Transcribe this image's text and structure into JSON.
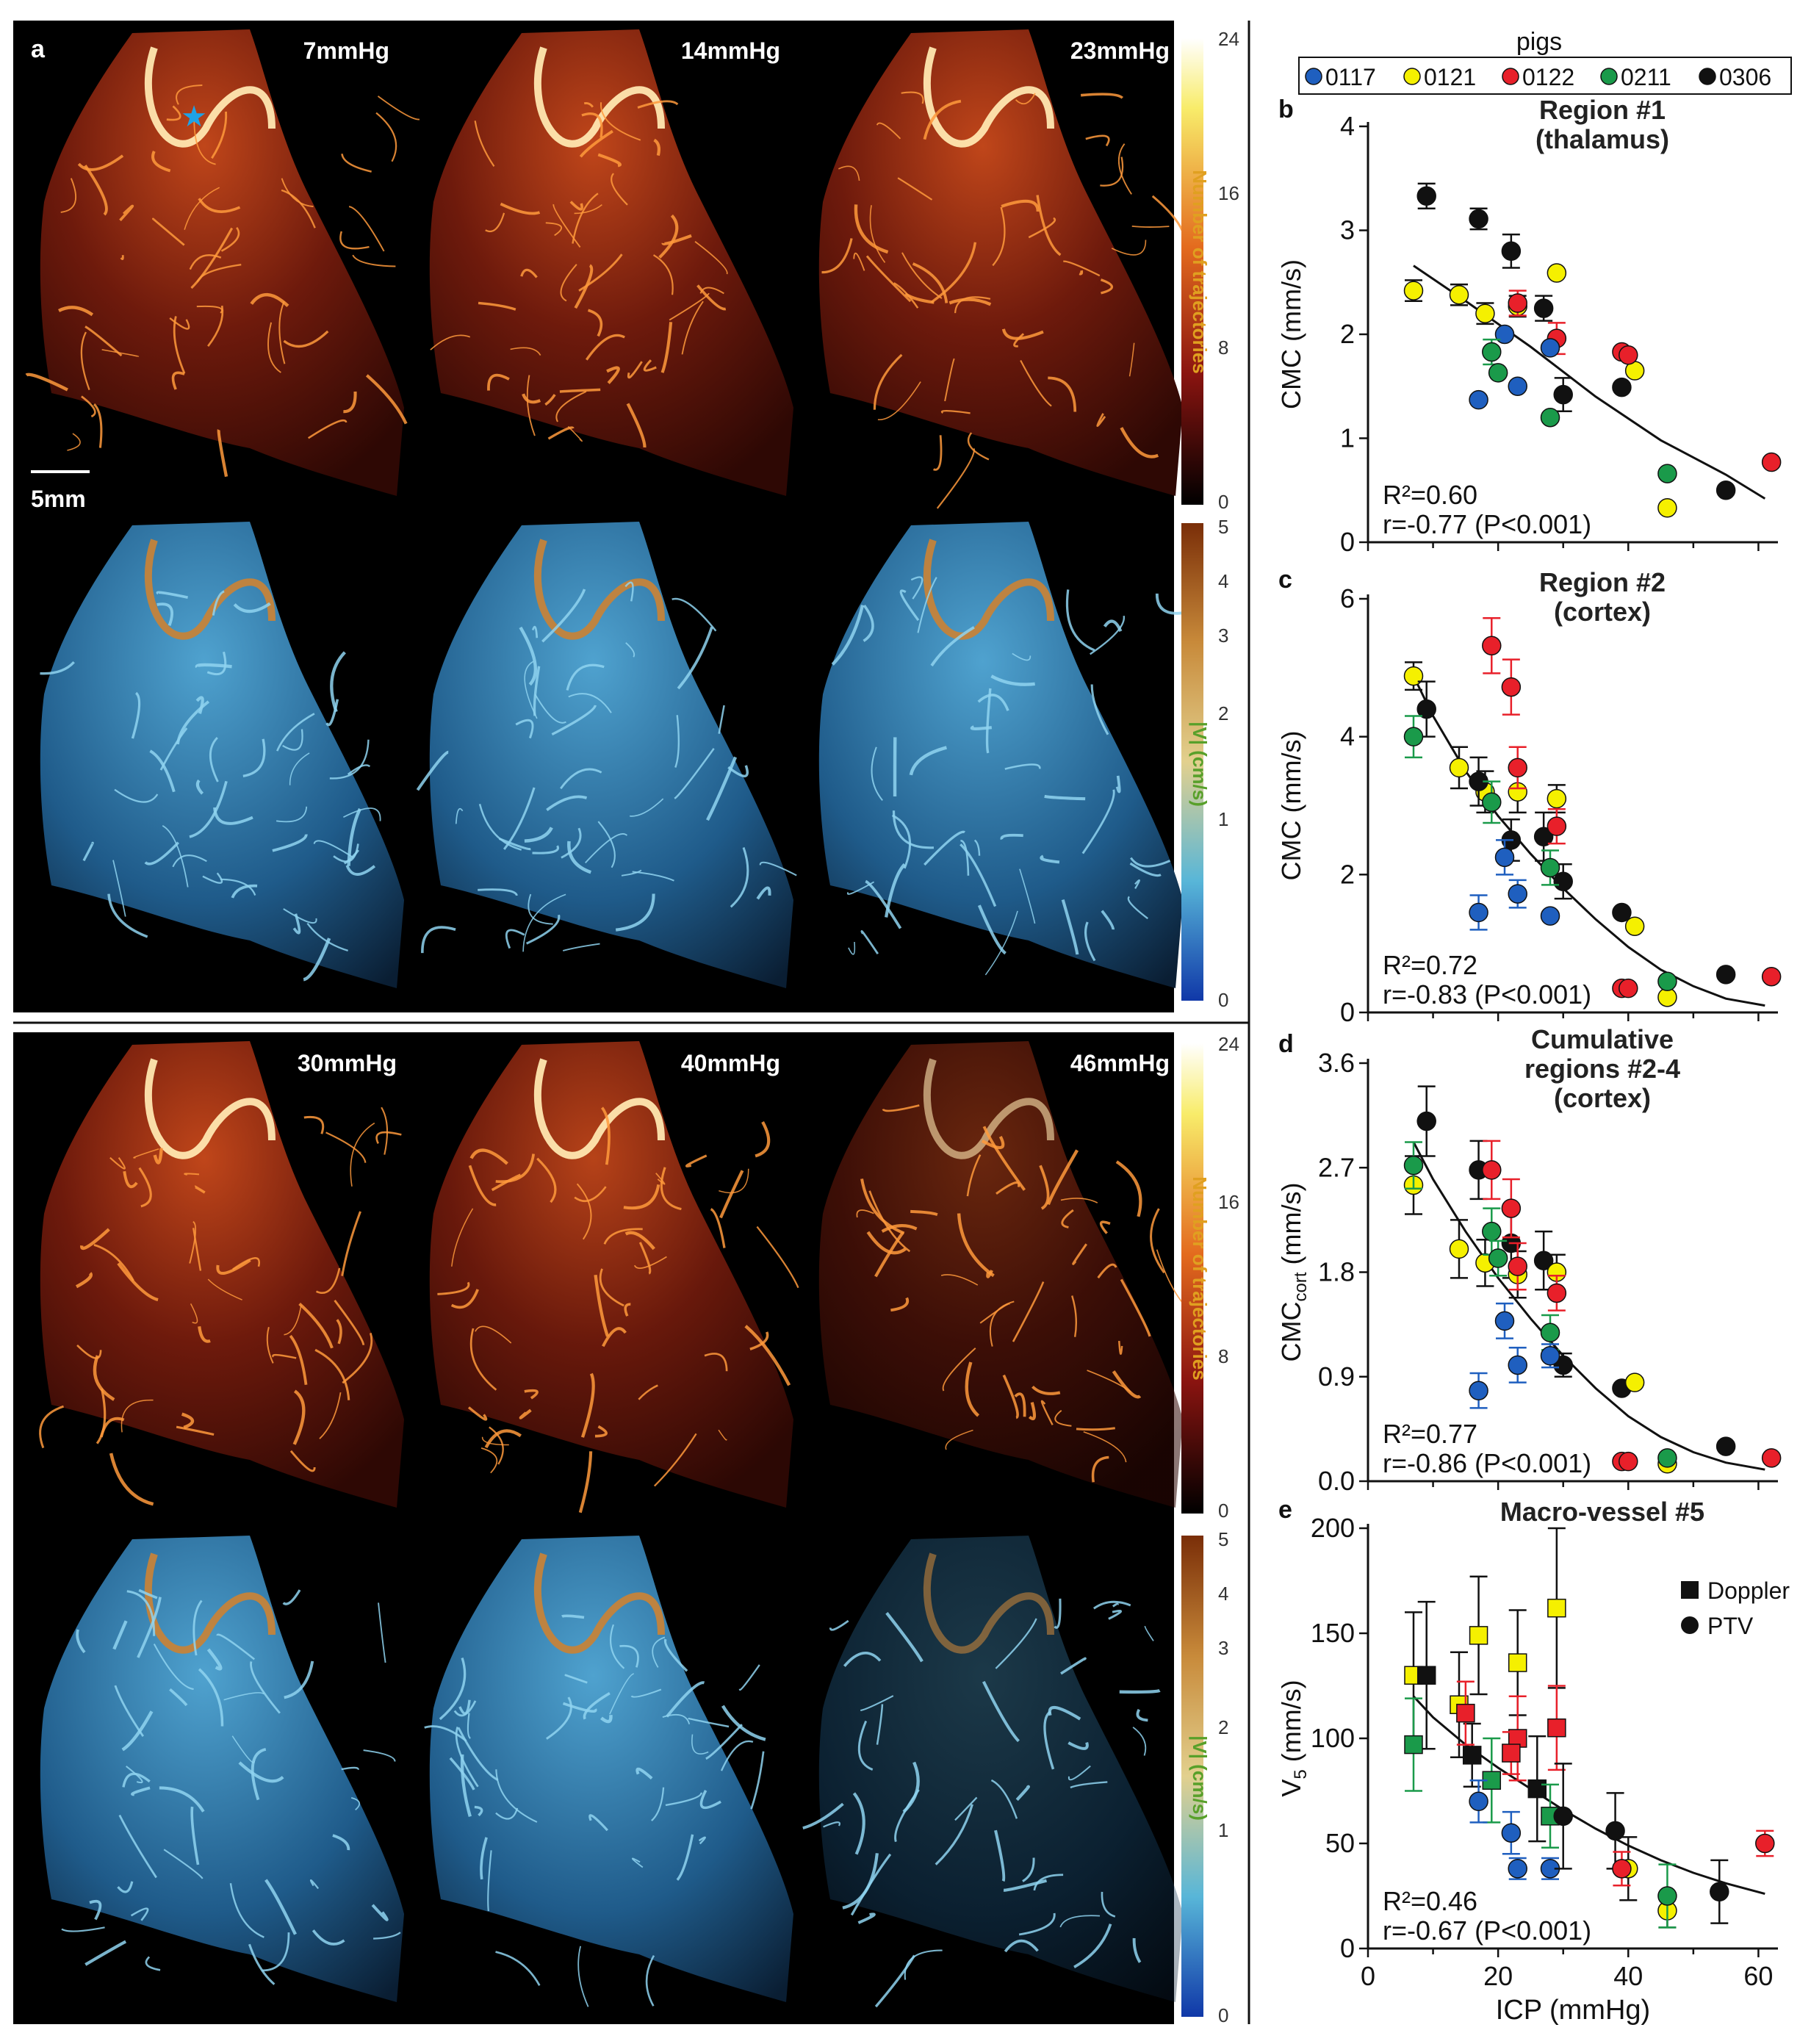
{
  "panel_a": {
    "label": "a",
    "scale_bar": "5mm",
    "pressures": [
      "7mmHg",
      "14mmHg",
      "23mmHg",
      "30mmHg",
      "40mmHg",
      "46mmHg"
    ],
    "colorbar_traj": {
      "label": "Number of trajectories",
      "ticks": [
        "24",
        "16",
        "8",
        "0"
      ]
    },
    "colorbar_vel": {
      "label": "|V| (cm/s)",
      "ticks": [
        "5",
        "4",
        "3",
        "2",
        "1",
        "0"
      ]
    }
  },
  "legend": {
    "title": "pigs",
    "entries": [
      {
        "name": "0117",
        "color": "#1f5fbf"
      },
      {
        "name": "0121",
        "color": "#f5f000"
      },
      {
        "name": "0122",
        "color": "#e8202a"
      },
      {
        "name": "0211",
        "color": "#1a9a4a"
      },
      {
        "name": "0306",
        "color": "#111111"
      }
    ]
  },
  "colors": {
    "0117": "#1f5fbf",
    "0121": "#f5f000",
    "0122": "#e8202a",
    "0211": "#1a9a4a",
    "0306": "#111111"
  },
  "chart_data": [
    {
      "id": "b",
      "type": "scatter",
      "title_lines": [
        "Region #1",
        "(thalamus)"
      ],
      "ylabel": "CMC (mm/s)",
      "xlabel": "",
      "xlim": [
        0,
        63
      ],
      "ylim": [
        0,
        4
      ],
      "yticks": [
        0,
        1,
        2,
        3,
        4
      ],
      "ytick_labels": [
        "0",
        "1",
        "2",
        "3",
        "4"
      ],
      "stats": [
        "R²=0.60",
        "r=-0.77 (P<0.001)"
      ],
      "fit": [
        [
          7,
          2.66
        ],
        [
          15,
          2.32
        ],
        [
          25,
          1.88
        ],
        [
          35,
          1.4
        ],
        [
          45,
          0.98
        ],
        [
          55,
          0.65
        ],
        [
          61,
          0.42
        ]
      ],
      "points": [
        {
          "pig": "0306",
          "x": 9,
          "y": 3.33,
          "e": 0.12
        },
        {
          "pig": "0306",
          "x": 17,
          "y": 3.11,
          "e": 0.1
        },
        {
          "pig": "0306",
          "x": 22,
          "y": 2.8,
          "e": 0.16
        },
        {
          "pig": "0306",
          "x": 27,
          "y": 2.25,
          "e": 0.12
        },
        {
          "pig": "0306",
          "x": 30,
          "y": 1.42,
          "e": 0.16
        },
        {
          "pig": "0306",
          "x": 39,
          "y": 1.49,
          "e": 0
        },
        {
          "pig": "0306",
          "x": 55,
          "y": 0.5,
          "e": 0
        },
        {
          "pig": "0121",
          "x": 7,
          "y": 2.42,
          "e": 0.1
        },
        {
          "pig": "0121",
          "x": 14,
          "y": 2.38,
          "e": 0.1
        },
        {
          "pig": "0121",
          "x": 18,
          "y": 2.2,
          "e": 0.1
        },
        {
          "pig": "0121",
          "x": 23,
          "y": 2.27,
          "e": 0.1
        },
        {
          "pig": "0121",
          "x": 29,
          "y": 2.59,
          "e": 0
        },
        {
          "pig": "0121",
          "x": 41,
          "y": 1.65,
          "e": 0
        },
        {
          "pig": "0121",
          "x": 46,
          "y": 0.33,
          "e": 0
        },
        {
          "pig": "0122",
          "x": 23,
          "y": 2.3,
          "e": 0.12
        },
        {
          "pig": "0122",
          "x": 29,
          "y": 1.96,
          "e": 0.15
        },
        {
          "pig": "0122",
          "x": 39,
          "y": 1.83,
          "e": 0
        },
        {
          "pig": "0122",
          "x": 40,
          "y": 1.8,
          "e": 0
        },
        {
          "pig": "0122",
          "x": 62,
          "y": 0.77,
          "e": 0
        },
        {
          "pig": "0117",
          "x": 21,
          "y": 2.0,
          "e": 0
        },
        {
          "pig": "0117",
          "x": 17,
          "y": 1.37,
          "e": 0
        },
        {
          "pig": "0117",
          "x": 23,
          "y": 1.5,
          "e": 0
        },
        {
          "pig": "0117",
          "x": 28,
          "y": 1.87,
          "e": 0
        },
        {
          "pig": "0211",
          "x": 19,
          "y": 1.83,
          "e": 0.12
        },
        {
          "pig": "0211",
          "x": 20,
          "y": 1.63,
          "e": 0
        },
        {
          "pig": "0211",
          "x": 28,
          "y": 1.2,
          "e": 0
        },
        {
          "pig": "0211",
          "x": 46,
          "y": 0.66,
          "e": 0
        }
      ]
    },
    {
      "id": "c",
      "type": "scatter",
      "title_lines": [
        "Region #2",
        "(cortex)"
      ],
      "ylabel": "CMC (mm/s)",
      "xlabel": "",
      "xlim": [
        0,
        63
      ],
      "ylim": [
        0,
        6
      ],
      "yticks": [
        0,
        2,
        4,
        6
      ],
      "ytick_labels": [
        "0",
        "2",
        "4",
        "6"
      ],
      "stats": [
        "R²=0.72",
        "r=-0.83 (P<0.001)"
      ],
      "fit": [
        [
          7,
          4.88
        ],
        [
          10,
          4.3
        ],
        [
          15,
          3.5
        ],
        [
          20,
          2.85
        ],
        [
          25,
          2.3
        ],
        [
          30,
          1.8
        ],
        [
          35,
          1.35
        ],
        [
          40,
          0.95
        ],
        [
          45,
          0.62
        ],
        [
          50,
          0.38
        ],
        [
          55,
          0.2
        ],
        [
          61,
          0.1
        ]
      ],
      "points": [
        {
          "pig": "0121",
          "x": 7,
          "y": 4.88,
          "e": 0.2
        },
        {
          "pig": "0121",
          "x": 14,
          "y": 3.55,
          "e": 0.3
        },
        {
          "pig": "0121",
          "x": 18,
          "y": 3.2,
          "e": 0.3
        },
        {
          "pig": "0121",
          "x": 23,
          "y": 3.2,
          "e": 0.3
        },
        {
          "pig": "0121",
          "x": 29,
          "y": 3.1,
          "e": 0.2
        },
        {
          "pig": "0121",
          "x": 41,
          "y": 1.25,
          "e": 0
        },
        {
          "pig": "0121",
          "x": 46,
          "y": 0.22,
          "e": 0
        },
        {
          "pig": "0306",
          "x": 9,
          "y": 4.4,
          "e": 0.4
        },
        {
          "pig": "0306",
          "x": 17,
          "y": 3.35,
          "e": 0.35
        },
        {
          "pig": "0306",
          "x": 22,
          "y": 2.5,
          "e": 0.3
        },
        {
          "pig": "0306",
          "x": 27,
          "y": 2.55,
          "e": 0.35
        },
        {
          "pig": "0306",
          "x": 30,
          "y": 1.9,
          "e": 0.25
        },
        {
          "pig": "0306",
          "x": 39,
          "y": 1.45,
          "e": 0
        },
        {
          "pig": "0306",
          "x": 55,
          "y": 0.55,
          "e": 0
        },
        {
          "pig": "0122",
          "x": 19,
          "y": 5.32,
          "e": 0.4
        },
        {
          "pig": "0122",
          "x": 22,
          "y": 4.72,
          "e": 0.4
        },
        {
          "pig": "0122",
          "x": 23,
          "y": 3.55,
          "e": 0.3
        },
        {
          "pig": "0122",
          "x": 29,
          "y": 2.7,
          "e": 0.25
        },
        {
          "pig": "0122",
          "x": 39,
          "y": 0.35,
          "e": 0
        },
        {
          "pig": "0122",
          "x": 40,
          "y": 0.35,
          "e": 0
        },
        {
          "pig": "0122",
          "x": 62,
          "y": 0.52,
          "e": 0
        },
        {
          "pig": "0211",
          "x": 7,
          "y": 4.0,
          "e": 0.3
        },
        {
          "pig": "0211",
          "x": 19,
          "y": 3.05,
          "e": 0.3
        },
        {
          "pig": "0211",
          "x": 28,
          "y": 2.1,
          "e": 0.25
        },
        {
          "pig": "0211",
          "x": 46,
          "y": 0.45,
          "e": 0
        },
        {
          "pig": "0117",
          "x": 17,
          "y": 1.45,
          "e": 0.25
        },
        {
          "pig": "0117",
          "x": 21,
          "y": 2.25,
          "e": 0.25
        },
        {
          "pig": "0117",
          "x": 23,
          "y": 1.72,
          "e": 0.2
        },
        {
          "pig": "0117",
          "x": 28,
          "y": 1.4,
          "e": 0
        }
      ]
    },
    {
      "id": "d",
      "type": "scatter",
      "title_lines": [
        "Cumulative",
        "regions #2-4",
        "(cortex)"
      ],
      "ylabel": "CMC",
      "ylabel_sub": "cort",
      "ylabel_suffix": " (mm/s)",
      "xlabel": "",
      "xlim": [
        0,
        63
      ],
      "ylim": [
        0,
        3.6
      ],
      "yticks": [
        0,
        0.9,
        1.8,
        2.7,
        3.6
      ],
      "ytick_labels": [
        "0.0",
        "0.9",
        "1.8",
        "2.7",
        "3.6"
      ],
      "stats": [
        "R²=0.77",
        "r=-0.86 (P<0.001)"
      ],
      "fit": [
        [
          7,
          2.92
        ],
        [
          10,
          2.6
        ],
        [
          15,
          2.15
        ],
        [
          20,
          1.75
        ],
        [
          25,
          1.4
        ],
        [
          30,
          1.08
        ],
        [
          35,
          0.8
        ],
        [
          40,
          0.56
        ],
        [
          45,
          0.38
        ],
        [
          50,
          0.25
        ],
        [
          55,
          0.16
        ],
        [
          61,
          0.1
        ]
      ],
      "points": [
        {
          "pig": "0306",
          "x": 9,
          "y": 3.1,
          "e": 0.3
        },
        {
          "pig": "0306",
          "x": 17,
          "y": 2.68,
          "e": 0.25
        },
        {
          "pig": "0306",
          "x": 22,
          "y": 2.05,
          "e": 0.3
        },
        {
          "pig": "0306",
          "x": 27,
          "y": 1.9,
          "e": 0.25
        },
        {
          "pig": "0306",
          "x": 30,
          "y": 1.0,
          "e": 0.1
        },
        {
          "pig": "0306",
          "x": 39,
          "y": 0.8,
          "e": 0
        },
        {
          "pig": "0306",
          "x": 55,
          "y": 0.3,
          "e": 0
        },
        {
          "pig": "0121",
          "x": 7,
          "y": 2.55,
          "e": 0.25
        },
        {
          "pig": "0121",
          "x": 14,
          "y": 2.0,
          "e": 0.25
        },
        {
          "pig": "0121",
          "x": 18,
          "y": 1.88,
          "e": 0.2
        },
        {
          "pig": "0121",
          "x": 23,
          "y": 1.78,
          "e": 0.2
        },
        {
          "pig": "0121",
          "x": 29,
          "y": 1.8,
          "e": 0.15
        },
        {
          "pig": "0121",
          "x": 41,
          "y": 0.85,
          "e": 0
        },
        {
          "pig": "0121",
          "x": 46,
          "y": 0.15,
          "e": 0
        },
        {
          "pig": "0122",
          "x": 19,
          "y": 2.68,
          "e": 0.25
        },
        {
          "pig": "0122",
          "x": 22,
          "y": 2.35,
          "e": 0.25
        },
        {
          "pig": "0122",
          "x": 23,
          "y": 1.85,
          "e": 0.2
        },
        {
          "pig": "0122",
          "x": 29,
          "y": 1.62,
          "e": 0.15
        },
        {
          "pig": "0122",
          "x": 39,
          "y": 0.17,
          "e": 0
        },
        {
          "pig": "0122",
          "x": 40,
          "y": 0.17,
          "e": 0
        },
        {
          "pig": "0122",
          "x": 62,
          "y": 0.2,
          "e": 0
        },
        {
          "pig": "0211",
          "x": 7,
          "y": 2.72,
          "e": 0.2
        },
        {
          "pig": "0211",
          "x": 19,
          "y": 2.15,
          "e": 0.2
        },
        {
          "pig": "0211",
          "x": 20,
          "y": 1.92,
          "e": 0.15
        },
        {
          "pig": "0211",
          "x": 28,
          "y": 1.28,
          "e": 0.15
        },
        {
          "pig": "0211",
          "x": 46,
          "y": 0.2,
          "e": 0
        },
        {
          "pig": "0117",
          "x": 17,
          "y": 0.78,
          "e": 0.15
        },
        {
          "pig": "0117",
          "x": 21,
          "y": 1.38,
          "e": 0.15
        },
        {
          "pig": "0117",
          "x": 23,
          "y": 1.0,
          "e": 0.15
        },
        {
          "pig": "0117",
          "x": 28,
          "y": 1.08,
          "e": 0.1
        }
      ]
    },
    {
      "id": "e",
      "type": "scatter",
      "title_lines": [
        "Macro-vessel #5"
      ],
      "ylabel": "V",
      "ylabel_sub": "5",
      "ylabel_suffix": " (mm/s)",
      "xlabel": "ICP (mmHg)",
      "xlim": [
        0,
        63
      ],
      "ylim": [
        0,
        200
      ],
      "xticks": [
        0,
        20,
        40,
        60
      ],
      "xtick_labels": [
        "0",
        "20",
        "40",
        "60"
      ],
      "yticks": [
        0,
        50,
        100,
        150,
        200
      ],
      "ytick_labels": [
        "0",
        "50",
        "100",
        "150",
        "200"
      ],
      "stats": [
        "R²=0.46",
        "r=-0.67 (P<0.001)"
      ],
      "marker_legend": [
        "Doppler",
        "PTV"
      ],
      "fit": [
        [
          7,
          120
        ],
        [
          10,
          110
        ],
        [
          15,
          97
        ],
        [
          20,
          86
        ],
        [
          25,
          76
        ],
        [
          30,
          66
        ],
        [
          35,
          57
        ],
        [
          40,
          49
        ],
        [
          45,
          42
        ],
        [
          50,
          36
        ],
        [
          55,
          31
        ],
        [
          61,
          26
        ]
      ],
      "points": [
        {
          "pig": "0121",
          "x": 7,
          "y": 130,
          "e": 30,
          "m": "sq"
        },
        {
          "pig": "0121",
          "x": 14,
          "y": 116,
          "e": 25,
          "m": "sq"
        },
        {
          "pig": "0121",
          "x": 17,
          "y": 149,
          "e": 28,
          "m": "sq"
        },
        {
          "pig": "0121",
          "x": 23,
          "y": 136,
          "e": 25,
          "m": "sq"
        },
        {
          "pig": "0121",
          "x": 29,
          "y": 162,
          "e": 38,
          "m": "sq"
        },
        {
          "pig": "0306",
          "x": 9,
          "y": 130,
          "e": 35,
          "m": "sq"
        },
        {
          "pig": "0306",
          "x": 16,
          "y": 92,
          "e": 15,
          "m": "sq"
        },
        {
          "pig": "0306",
          "x": 26,
          "y": 76,
          "e": 25,
          "m": "sq"
        },
        {
          "pig": "0122",
          "x": 15,
          "y": 112,
          "e": 15,
          "m": "sq"
        },
        {
          "pig": "0122",
          "x": 23,
          "y": 100,
          "e": 20,
          "m": "sq"
        },
        {
          "pig": "0122",
          "x": 29,
          "y": 105,
          "e": 20,
          "m": "sq"
        },
        {
          "pig": "0122",
          "x": 22,
          "y": 93,
          "e": 10,
          "m": "sq"
        },
        {
          "pig": "0211",
          "x": 7,
          "y": 97,
          "e": 22,
          "m": "sq"
        },
        {
          "pig": "0211",
          "x": 19,
          "y": 80,
          "e": 20,
          "m": "sq"
        },
        {
          "pig": "0211",
          "x": 28,
          "y": 63,
          "e": 15,
          "m": "sq"
        },
        {
          "pig": "0117",
          "x": 17,
          "y": 70,
          "e": 10,
          "m": "c"
        },
        {
          "pig": "0117",
          "x": 22,
          "y": 55,
          "e": 10,
          "m": "c"
        },
        {
          "pig": "0117",
          "x": 23,
          "y": 38,
          "e": 5,
          "m": "c"
        },
        {
          "pig": "0117",
          "x": 28,
          "y": 38,
          "e": 5,
          "m": "c"
        },
        {
          "pig": "0306",
          "x": 30,
          "y": 63,
          "e": 25,
          "m": "c"
        },
        {
          "pig": "0306",
          "x": 38,
          "y": 56,
          "e": 18,
          "m": "c"
        },
        {
          "pig": "0306",
          "x": 54,
          "y": 27,
          "e": 15,
          "m": "c"
        },
        {
          "pig": "0121",
          "x": 40,
          "y": 38,
          "e": 15,
          "m": "c"
        },
        {
          "pig": "0121",
          "x": 46,
          "y": 18,
          "e": 8,
          "m": "c"
        },
        {
          "pig": "0122",
          "x": 39,
          "y": 38,
          "e": 8,
          "m": "c"
        },
        {
          "pig": "0122",
          "x": 61,
          "y": 50,
          "e": 6,
          "m": "c"
        },
        {
          "pig": "0211",
          "x": 46,
          "y": 25,
          "e": 15,
          "m": "c"
        }
      ]
    }
  ]
}
